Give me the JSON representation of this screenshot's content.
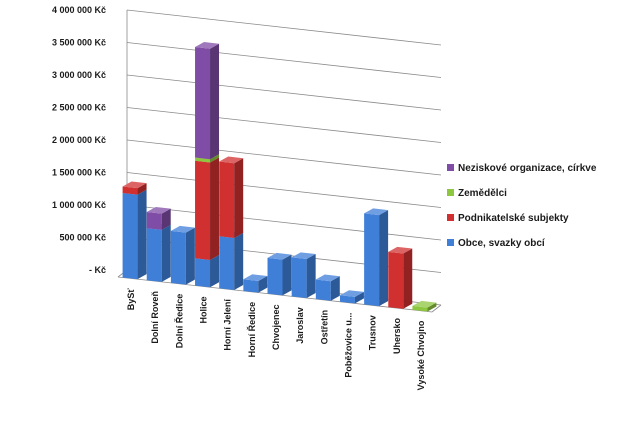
{
  "chart_data": {
    "type": "bar",
    "stacked": true,
    "three_d": true,
    "grid": true,
    "legend_position": "right",
    "ylim": [
      0,
      4000000
    ],
    "y_ticks": [
      "4 000 000 Kč",
      "3 500 000 Kč",
      "3 000 000 Kč",
      "2 500 000 Kč",
      "2 000 000 Kč",
      "1 500 000 Kč",
      "1 000 000 Kč",
      "500 000 Kč",
      "-   Kč"
    ],
    "categories": [
      "BySť",
      "Dolní Roveň",
      "Dolní Ředice",
      "Holice",
      "Horní Jelení",
      "Horní Ředice",
      "Chvojenec",
      "Jaroslav",
      "Ostřetín",
      "Poběžovice u...",
      "Trusnov",
      "Uhersko",
      "Vysoké Chvojno"
    ],
    "series": [
      {
        "name": "Obce, svazky obcí",
        "color": "#3f7fd8",
        "values": [
          1300000,
          800000,
          800000,
          420000,
          800000,
          180000,
          550000,
          600000,
          300000,
          100000,
          1400000,
          0,
          0
        ]
      },
      {
        "name": "Podnikatelské subjekty",
        "color": "#d03030",
        "values": [
          100000,
          0,
          0,
          1500000,
          1150000,
          0,
          0,
          0,
          0,
          0,
          0,
          850000,
          0
        ]
      },
      {
        "name": "Zemědělci",
        "color": "#8dc63f",
        "values": [
          0,
          0,
          0,
          50000,
          0,
          0,
          0,
          0,
          0,
          0,
          0,
          0,
          60000
        ]
      },
      {
        "name": "Neziskové organizace, církve",
        "color": "#7f4ca6",
        "values": [
          0,
          250000,
          0,
          1700000,
          0,
          0,
          0,
          0,
          0,
          0,
          0,
          0,
          0
        ]
      }
    ],
    "legend_order": [
      3,
      2,
      1,
      0
    ]
  }
}
